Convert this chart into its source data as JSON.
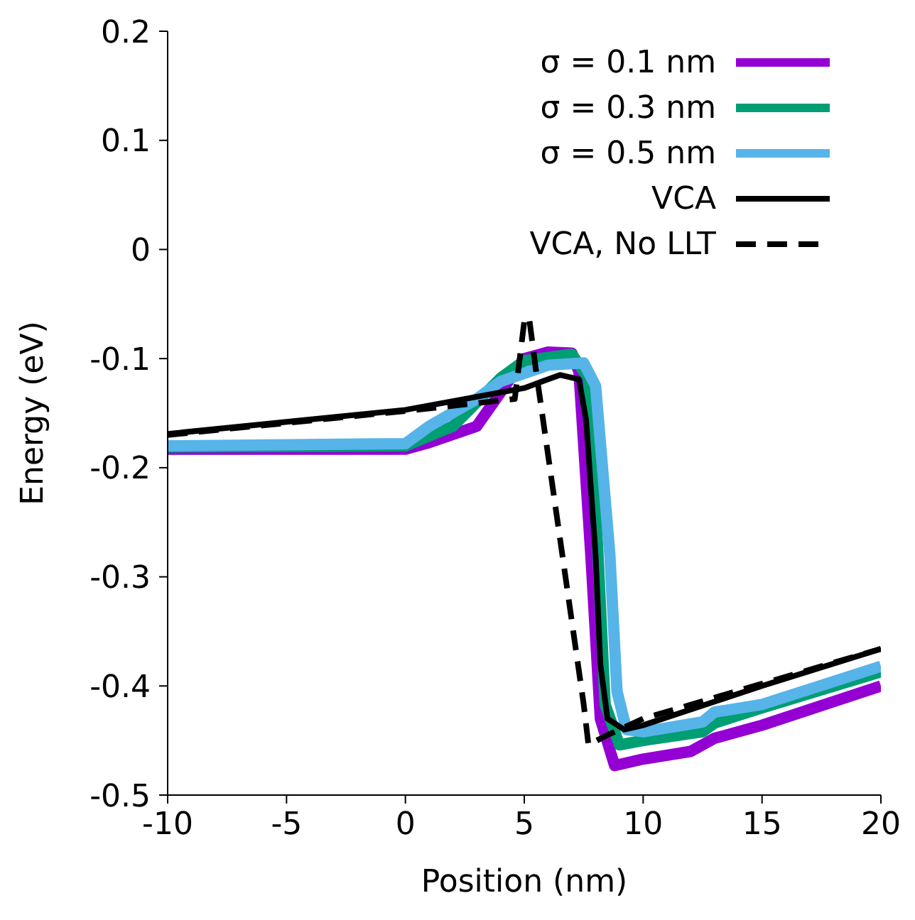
{
  "chart_data": {
    "type": "line",
    "xlabel": "Position (nm)",
    "ylabel": "Energy (eV)",
    "xlim": [
      -10,
      20
    ],
    "xticks": [
      -10,
      -5,
      0,
      5,
      10,
      15,
      20
    ],
    "ylim": [
      -0.5,
      0.2
    ],
    "yticks": [
      -0.5,
      -0.4,
      -0.3,
      -0.2,
      -0.1,
      0,
      0.1,
      0.2
    ],
    "grid": false,
    "legend": "top right",
    "marker": "none",
    "series": [
      {
        "name": "σ = 0.1 nm",
        "color": "#9400d3",
        "line_style": "solid",
        "x": [
          -10,
          0,
          1,
          3,
          4,
          5,
          6,
          7,
          7.3,
          7.8,
          8.2,
          8.8,
          10,
          12,
          13,
          15,
          20
        ],
        "values": [
          -0.183,
          -0.183,
          -0.177,
          -0.162,
          -0.131,
          -0.1,
          -0.094,
          -0.095,
          -0.112,
          -0.28,
          -0.43,
          -0.473,
          -0.467,
          -0.46,
          -0.448,
          -0.436,
          -0.4
        ]
      },
      {
        "name": "σ = 0.3 nm",
        "color": "#009e73",
        "line_style": "solid",
        "x": [
          -10,
          0,
          2,
          4,
          5,
          7,
          7.7,
          8.1,
          8.4,
          9,
          10,
          12.5,
          13,
          15,
          20
        ],
        "values": [
          -0.181,
          -0.18,
          -0.162,
          -0.118,
          -0.102,
          -0.096,
          -0.118,
          -0.28,
          -0.417,
          -0.454,
          -0.45,
          -0.442,
          -0.434,
          -0.42,
          -0.387
        ]
      },
      {
        "name": "σ = 0.5 nm",
        "color": "#56b4e9",
        "line_style": "solid",
        "x": [
          -10,
          0,
          1,
          3,
          4,
          6,
          7.5,
          8,
          8.6,
          8.9,
          9.3,
          10,
          12.5,
          13,
          15,
          20
        ],
        "values": [
          -0.18,
          -0.178,
          -0.162,
          -0.137,
          -0.121,
          -0.106,
          -0.104,
          -0.125,
          -0.28,
          -0.405,
          -0.44,
          -0.442,
          -0.433,
          -0.424,
          -0.417,
          -0.382
        ]
      },
      {
        "name": "VCA",
        "color": "#000000",
        "line_style": "solid",
        "x": [
          -10,
          0,
          5,
          6.5,
          7.3,
          7.6,
          8,
          8.2,
          8.5,
          9.2,
          10,
          15,
          20
        ],
        "values": [
          -0.169,
          -0.147,
          -0.127,
          -0.115,
          -0.119,
          -0.156,
          -0.28,
          -0.38,
          -0.43,
          -0.44,
          -0.436,
          -0.4,
          -0.366
        ]
      },
      {
        "name": "VCA, No LLT",
        "color": "#000000",
        "line_style": "dashed",
        "x": [
          -10,
          0,
          4.6,
          5,
          5.2,
          5.5,
          7.5,
          7.7,
          8.5,
          10,
          15,
          20
        ],
        "values": [
          -0.17,
          -0.148,
          -0.137,
          -0.066,
          -0.062,
          -0.112,
          -0.417,
          -0.454,
          -0.445,
          -0.43,
          -0.398,
          -0.366
        ]
      }
    ]
  }
}
